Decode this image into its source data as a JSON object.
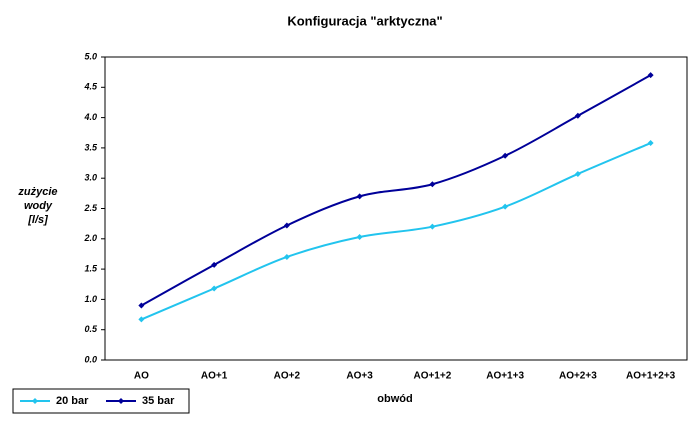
{
  "chart_data": {
    "type": "line",
    "title": "Konfiguracja \"arktyczna\"",
    "ylabel": [
      "zużycie",
      "wody",
      "[l/s]"
    ],
    "xlabel": "obwód",
    "categories": [
      "AO",
      "AO+1",
      "AO+2",
      "AO+3",
      "AO+1+2",
      "AO+1+3",
      "AO+2+3",
      "AO+1+2+3"
    ],
    "series": [
      {
        "name": "20 bar",
        "color": "#22c4ee",
        "values": [
          0.67,
          1.18,
          1.7,
          2.03,
          2.2,
          2.53,
          3.07,
          3.58
        ]
      },
      {
        "name": "35 bar",
        "color": "#000099",
        "values": [
          0.9,
          1.57,
          2.22,
          2.7,
          2.9,
          3.37,
          4.03,
          4.7
        ]
      }
    ],
    "ylim": [
      0,
      5
    ],
    "yticks": [
      {
        "value": 0,
        "label": "0.0"
      },
      {
        "value": 0.5,
        "label": "0.5"
      },
      {
        "value": 1,
        "label": "1.0"
      },
      {
        "value": 1.5,
        "label": "1.5"
      },
      {
        "value": 2,
        "label": "2.0"
      },
      {
        "value": 2.5,
        "label": "2.5"
      },
      {
        "value": 3,
        "label": "3.0"
      },
      {
        "value": 3.5,
        "label": "3.5"
      },
      {
        "value": 4,
        "label": "4.0"
      },
      {
        "value": 4.5,
        "label": "4.5"
      },
      {
        "value": 5,
        "label": "5.0"
      }
    ],
    "grid": false,
    "legend": "bottom-left"
  }
}
